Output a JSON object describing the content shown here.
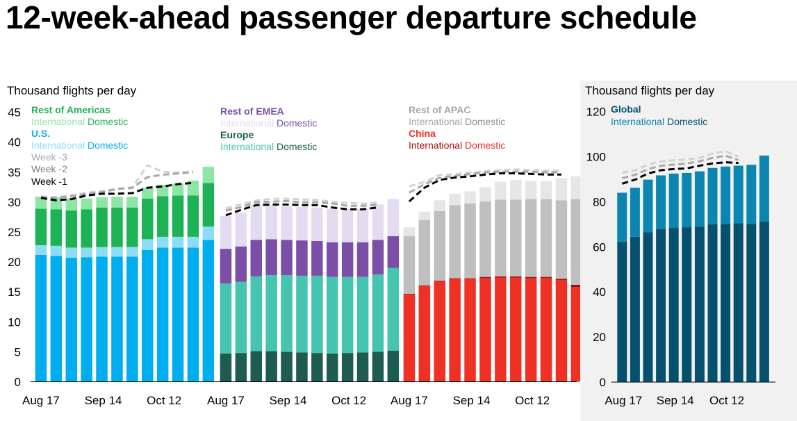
{
  "title": "12-week-ahead passenger departure schedule",
  "colors": {
    "americas_dom": "#1DB354",
    "americas_int": "#8EE6A6",
    "us_dom": "#00AEEF",
    "us_int": "#8DDCF7",
    "emea_dom": "#7B4FA8",
    "emea_int": "#E3DBEF",
    "europe_dom": "#1E5B50",
    "europe_int": "#45C4B0",
    "apac_dom": "#BFBFBF",
    "apac_int": "#E6E6E6",
    "china_dom": "#EE3124",
    "china_int": "#A01010",
    "global_dom": "#06506F",
    "global_int": "#0A86B0",
    "week3": "#D3D3D3",
    "week2": "#A8A8A8",
    "week1": "#000000",
    "panel_bg": "#F1F1F1"
  },
  "chart_data": [
    {
      "type": "bar",
      "stacked": true,
      "ylabel": "Thousand flights per day",
      "ylim": [
        0,
        45
      ],
      "yticks": [
        "0",
        "5",
        "10",
        "15",
        "20",
        "25",
        "30",
        "35",
        "40",
        "45"
      ],
      "x_tick_labels": [
        "Aug 17",
        "Sep 14",
        "Oct 12"
      ],
      "x_tick_bar_index": [
        0,
        4,
        8
      ],
      "region_groups": [
        {
          "regions": [
            {
              "id": "us",
              "name": "U.S.",
              "name_color": "#00AEEF",
              "domestic": [
                21.2,
                21.0,
                20.7,
                20.8,
                20.9,
                20.9,
                20.9,
                22.0,
                22.4,
                22.4,
                22.4,
                23.7
              ],
              "international": [
                1.6,
                1.7,
                1.7,
                1.6,
                1.6,
                1.6,
                1.6,
                1.8,
                1.8,
                1.8,
                1.8,
                2.2
              ]
            },
            {
              "id": "americas",
              "name": "Rest of Americas",
              "name_color": "#1DB354",
              "domestic": [
                6.1,
                6.1,
                6.2,
                6.4,
                6.6,
                6.6,
                6.6,
                6.8,
                6.8,
                6.9,
                6.9,
                7.3
              ],
              "international": [
                2.0,
                2.0,
                2.0,
                1.8,
                1.7,
                1.8,
                1.8,
                1.8,
                1.9,
                2.0,
                2.5,
                2.7
              ]
            }
          ],
          "week3": [
            30.6,
            30.5,
            30.8,
            31.2,
            31.5,
            31.9,
            32.1,
            35.8,
            34.7,
            34.6,
            34.8
          ],
          "week2": [
            30.7,
            30.5,
            30.8,
            31.2,
            31.5,
            32.0,
            32.2,
            34.0,
            34.4,
            34.6,
            34.8
          ],
          "week1": [
            30.7,
            30.3,
            30.5,
            31.1,
            31.4,
            31.4,
            31.5,
            32.4,
            32.6,
            33.0,
            33.2
          ]
        },
        {
          "regions": [
            {
              "id": "europe",
              "name": "Europe",
              "name_color": "#1E5B50",
              "domestic": [
                4.7,
                4.8,
                5.1,
                5.1,
                5.0,
                4.9,
                4.8,
                4.7,
                4.8,
                4.9,
                5.0,
                5.2
              ],
              "international": [
                11.7,
                11.9,
                12.5,
                12.7,
                12.8,
                12.8,
                12.9,
                12.8,
                12.7,
                12.6,
                12.9,
                13.8
              ]
            },
            {
              "id": "emea",
              "name": "Rest of EMEA",
              "name_color": "#7B4FA8",
              "domestic": [
                5.8,
                5.9,
                6.1,
                6.0,
                5.9,
                5.9,
                5.8,
                5.8,
                5.8,
                5.8,
                5.8,
                5.3
              ],
              "international": [
                5.5,
                5.6,
                5.8,
                5.7,
                5.6,
                5.6,
                5.6,
                5.6,
                5.5,
                5.6,
                5.9,
                6.2
              ]
            }
          ],
          "week3": [
            28.6,
            29.3,
            29.9,
            30.2,
            30.2,
            30.1,
            30.0,
            29.7,
            29.5,
            29.4,
            29.6
          ],
          "week2": [
            28.4,
            29.0,
            29.8,
            29.9,
            30.0,
            29.8,
            29.8,
            29.6,
            29.2,
            29.2,
            29.4
          ],
          "week1": [
            27.8,
            28.7,
            29.5,
            29.6,
            29.6,
            29.5,
            29.5,
            29.1,
            28.8,
            28.8,
            29.1
          ]
        },
        {
          "regions": [
            {
              "id": "china",
              "name": "China",
              "name_color": "#EE3124",
              "domestic": [
                14.6,
                16.0,
                16.8,
                17.2,
                17.2,
                17.3,
                17.4,
                17.4,
                17.3,
                17.3,
                17.0,
                15.8
              ],
              "international": [
                0.1,
                0.1,
                0.1,
                0.1,
                0.1,
                0.2,
                0.2,
                0.2,
                0.2,
                0.2,
                0.2,
                0.4
              ]
            },
            {
              "id": "apac",
              "name": "Rest of APAC",
              "name_color": "#BFBFBF",
              "domestic": [
                9.6,
                10.9,
                11.6,
                12.2,
                12.5,
                12.6,
                12.8,
                12.8,
                13.0,
                13.0,
                13.1,
                14.3
              ],
              "international": [
                1.5,
                1.4,
                1.8,
                1.9,
                2.0,
                2.4,
                3.0,
                3.3,
                3.0,
                3.0,
                3.7,
                3.8
              ]
            }
          ],
          "week3": [
            32.3,
            33.0,
            34.2,
            34.3,
            34.6,
            34.8,
            35.0,
            35.1,
            35.0,
            34.9,
            34.9
          ],
          "week2": [
            31.4,
            32.8,
            33.9,
            34.2,
            34.5,
            34.8,
            34.9,
            34.9,
            34.9,
            34.8,
            34.8
          ],
          "week1": [
            30.1,
            32.4,
            33.7,
            34.1,
            34.3,
            34.6,
            34.8,
            34.8,
            34.7,
            34.6,
            34.6
          ]
        }
      ]
    },
    {
      "type": "bar",
      "stacked": true,
      "ylabel": "Thousand flights per day",
      "ylim": [
        0,
        120
      ],
      "yticks": [
        "0",
        "20",
        "40",
        "60",
        "80",
        "100",
        "120"
      ],
      "x_tick_labels": [
        "Aug 17",
        "Sep 14",
        "Oct 12"
      ],
      "x_tick_bar_index": [
        0,
        4,
        8
      ],
      "regions": [
        {
          "id": "global",
          "name": "Global",
          "name_color": "#06506F",
          "domestic": [
            62.2,
            64.5,
            66.4,
            67.8,
            68.4,
            68.7,
            68.9,
            70.0,
            70.2,
            70.4,
            70.2,
            71.3
          ],
          "international": [
            21.8,
            21.7,
            23.4,
            23.9,
            24.1,
            24.1,
            24.6,
            25.0,
            25.4,
            25.6,
            26.2,
            29.2
          ]
        }
      ],
      "week3": [
        92.0,
        93.0,
        95.5,
        97.0,
        97.5,
        97.8,
        98.5,
        100.5,
        101.5,
        99.0
      ],
      "week2": [
        90.0,
        91.5,
        94.0,
        95.5,
        96.0,
        96.5,
        97.5,
        99.0,
        100.0,
        98.0
      ],
      "week1": [
        88.0,
        89.8,
        92.5,
        94.0,
        94.5,
        94.8,
        96.0,
        97.0,
        97.5,
        97.2
      ]
    }
  ],
  "legend": {
    "international": "International",
    "domestic": "Domestic",
    "week3": "Week -3",
    "week2": "Week -2",
    "week1": "Week -1"
  }
}
